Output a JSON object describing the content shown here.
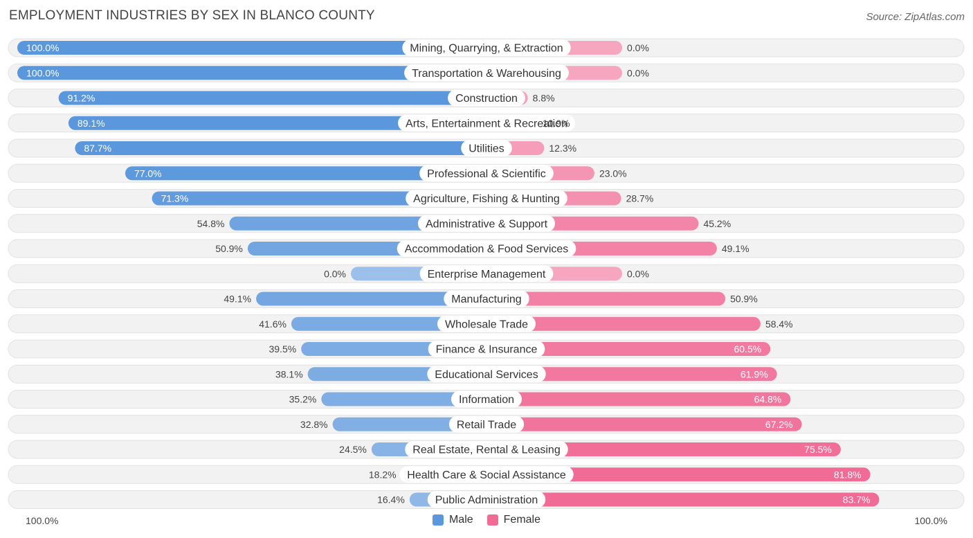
{
  "header": {
    "title": "EMPLOYMENT INDUSTRIES BY SEX IN BLANCO COUNTY",
    "source": "Source: ZipAtlas.com"
  },
  "axis": {
    "left_label": "100.0%",
    "right_label": "100.0%"
  },
  "legend": {
    "male_label": "Male",
    "female_label": "Female"
  },
  "colors": {
    "male_strong": "#5b97dc",
    "male_light": "#9cc0ea",
    "female_strong": "#f06b96",
    "female_light": "#f7a6c0",
    "row_bg": "#f2f2f2"
  },
  "chart_data": {
    "type": "bar",
    "orientation": "horizontal-diverging",
    "title": "EMPLOYMENT INDUSTRIES BY SEX IN BLANCO COUNTY",
    "categories": [
      "Mining, Quarrying, & Extraction",
      "Transportation & Warehousing",
      "Construction",
      "Arts, Entertainment & Recreation",
      "Utilities",
      "Professional & Scientific",
      "Agriculture, Fishing & Hunting",
      "Administrative & Support",
      "Accommodation & Food Services",
      "Enterprise Management",
      "Manufacturing",
      "Wholesale Trade",
      "Finance & Insurance",
      "Educational Services",
      "Information",
      "Retail Trade",
      "Real Estate, Rental & Leasing",
      "Health Care & Social Assistance",
      "Public Administration"
    ],
    "series": [
      {
        "name": "Male",
        "values": [
          100.0,
          100.0,
          91.2,
          89.1,
          87.7,
          77.0,
          71.3,
          54.8,
          50.9,
          0.0,
          49.1,
          41.6,
          39.5,
          38.1,
          35.2,
          32.8,
          24.5,
          18.2,
          16.4
        ]
      },
      {
        "name": "Female",
        "values": [
          0.0,
          0.0,
          8.8,
          10.9,
          12.3,
          23.0,
          28.7,
          45.2,
          49.1,
          0.0,
          50.9,
          58.4,
          60.5,
          61.9,
          64.8,
          67.2,
          75.5,
          81.8,
          83.7
        ]
      }
    ],
    "value_labels_male": [
      "100.0%",
      "100.0%",
      "91.2%",
      "89.1%",
      "87.7%",
      "77.0%",
      "71.3%",
      "54.8%",
      "50.9%",
      "0.0%",
      "49.1%",
      "41.6%",
      "39.5%",
      "38.1%",
      "35.2%",
      "32.8%",
      "24.5%",
      "18.2%",
      "16.4%"
    ],
    "value_labels_female": [
      "0.0%",
      "0.0%",
      "8.8%",
      "10.9%",
      "12.3%",
      "23.0%",
      "28.7%",
      "45.2%",
      "49.1%",
      "0.0%",
      "50.9%",
      "58.4%",
      "60.5%",
      "61.9%",
      "64.8%",
      "67.2%",
      "75.5%",
      "81.8%",
      "83.7%"
    ],
    "xlim": [
      -100,
      100
    ],
    "legend_position": "bottom-center"
  }
}
